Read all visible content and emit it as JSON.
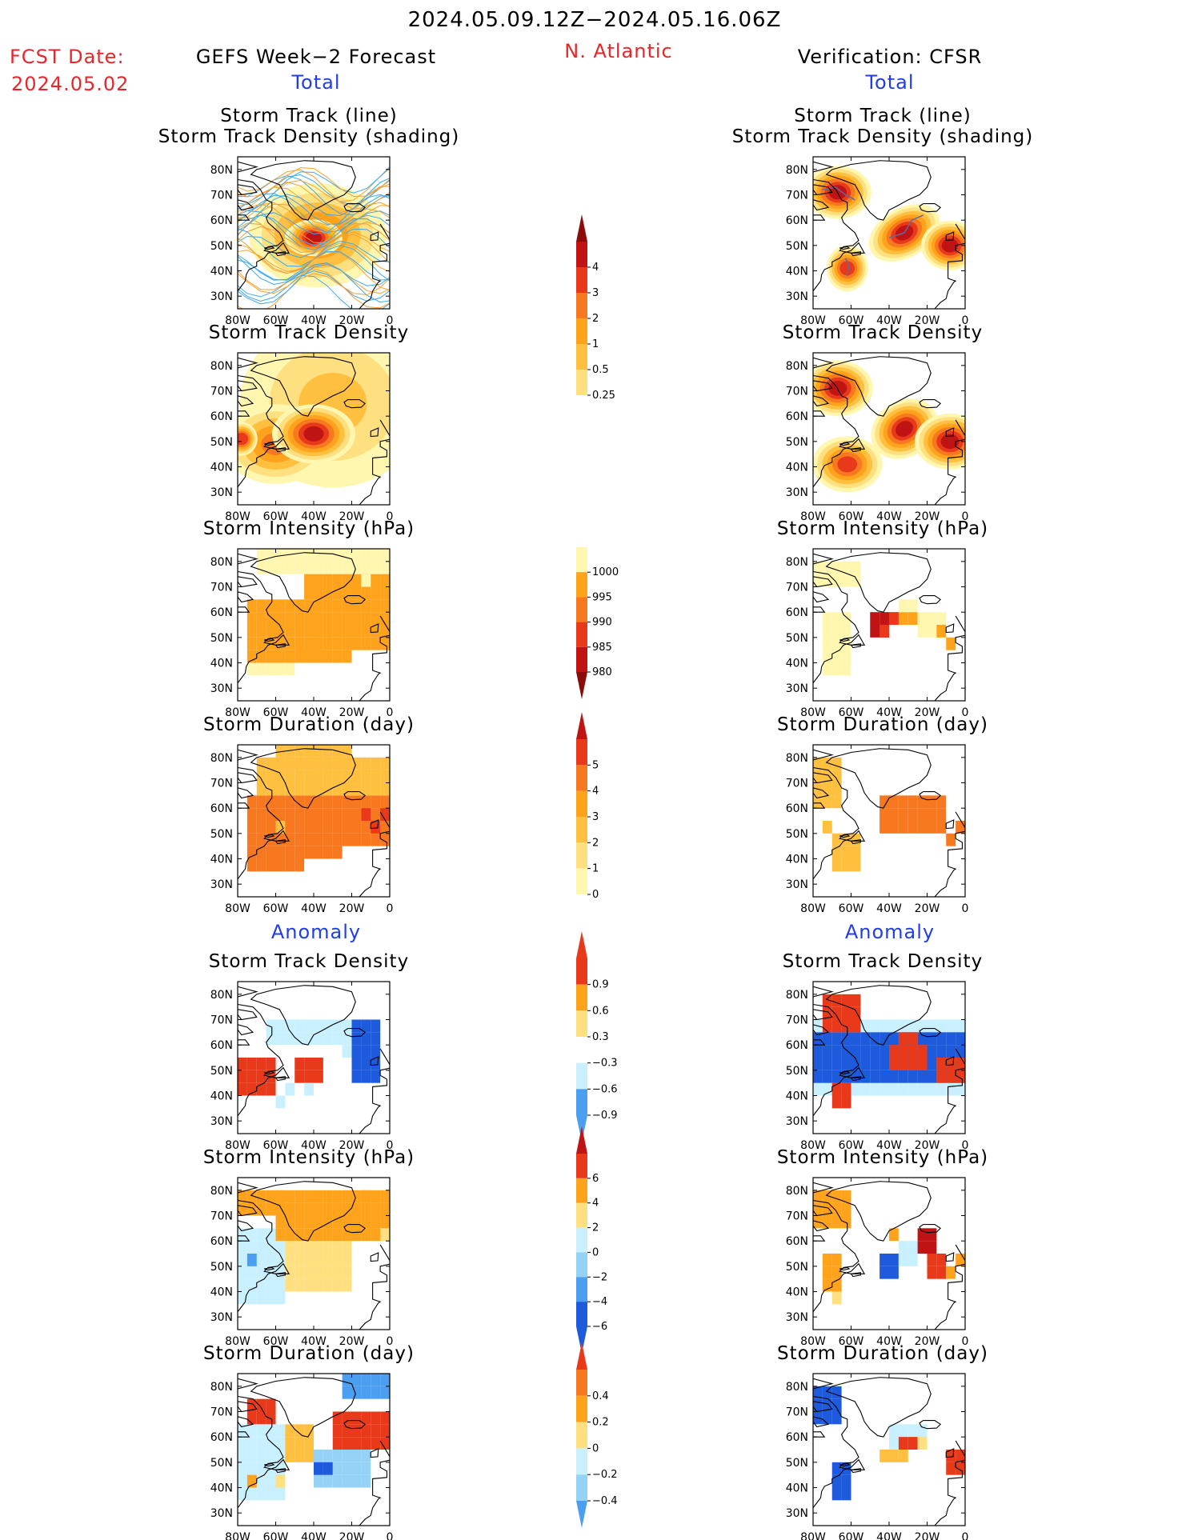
{
  "header": {
    "period": "2024.05.09.12Z−2024.05.16.06Z",
    "region": "N. Atlantic",
    "fcst_label": "FCST Date:",
    "fcst_date": "2024.05.02",
    "left_title": "GEFS Week−2 Forecast",
    "right_title": "Verification: CFSR",
    "total_label": "Total",
    "anomaly_label": "Anomaly"
  },
  "panel_titles": {
    "track_line": "Storm Track (line)",
    "track_density_shading": "Storm Track Density (shading)",
    "track_density": "Storm Track Density",
    "intensity": "Storm Intensity (hPa)",
    "duration": "Storm Duration (day)"
  },
  "map_axes": {
    "lat_labels": [
      "80N",
      "70N",
      "60N",
      "50N",
      "40N",
      "30N"
    ],
    "lon_labels": [
      "80W",
      "60W",
      "40W",
      "20W",
      "0"
    ]
  },
  "colors": {
    "yellow_light": "#fff7b0",
    "yellow": "#ffe080",
    "orange_light": "#ffc040",
    "orange": "#ffa21c",
    "orange_dark": "#f7781e",
    "red": "#e83a1a",
    "dark_red": "#c01414",
    "maroon": "#8c0c0c",
    "blue_light": "#c8f0ff",
    "blue_med": "#96d2f5",
    "blue": "#4b9ef0",
    "blue_dark": "#1e5adc",
    "track_line": "#3aa8f0"
  },
  "chart_data": [
    {
      "type": "heatmap",
      "name": "GEFS total storm track density",
      "title": "Storm Track Density",
      "colorbar": {
        "levels": [
          "4",
          "3",
          "2",
          "1",
          "0.5",
          "0.25"
        ]
      },
      "blobs": [
        {
          "lon": -40,
          "lat": 53,
          "level": 6
        },
        {
          "lon": -78,
          "lat": 51,
          "level": 4
        },
        {
          "lon": -30,
          "lat": 72,
          "level": 2
        }
      ]
    },
    {
      "type": "heatmap",
      "name": "CFSR total storm track density",
      "title": "Storm Track Density",
      "blobs": [
        {
          "lon": -67,
          "lat": 71,
          "level": 6
        },
        {
          "lon": -32,
          "lat": 55,
          "level": 6
        },
        {
          "lon": -8,
          "lat": 50,
          "level": 6
        },
        {
          "lon": -62,
          "lat": 41,
          "level": 5
        }
      ]
    },
    {
      "type": "heatmap",
      "name": "Storm intensity",
      "title": "Storm Intensity (hPa)",
      "colorbar": {
        "levels": [
          "1000",
          "995",
          "990",
          "985",
          "980"
        ]
      }
    },
    {
      "type": "heatmap",
      "name": "Storm duration",
      "title": "Storm Duration (day)",
      "colorbar": {
        "levels": [
          "5",
          "4",
          "3",
          "2",
          "1",
          "0"
        ]
      }
    },
    {
      "type": "heatmap",
      "name": "Storm track density anomaly",
      "title": "Storm Track Density",
      "colorbar": {
        "levels": [
          "0.9",
          "0.6",
          "0.3",
          "−0.3",
          "−0.6",
          "−0.9"
        ]
      }
    },
    {
      "type": "heatmap",
      "name": "Storm intensity anomaly",
      "title": "Storm Intensity (hPa)",
      "colorbar": {
        "levels": [
          "6",
          "4",
          "2",
          "0",
          "−2",
          "−4",
          "−6"
        ]
      }
    },
    {
      "type": "heatmap",
      "name": "Storm duration anomaly",
      "title": "Storm Duration (day)",
      "colorbar": {
        "levels": [
          "0.4",
          "0.2",
          "0",
          "−0.2",
          "−0.4"
        ]
      }
    }
  ]
}
